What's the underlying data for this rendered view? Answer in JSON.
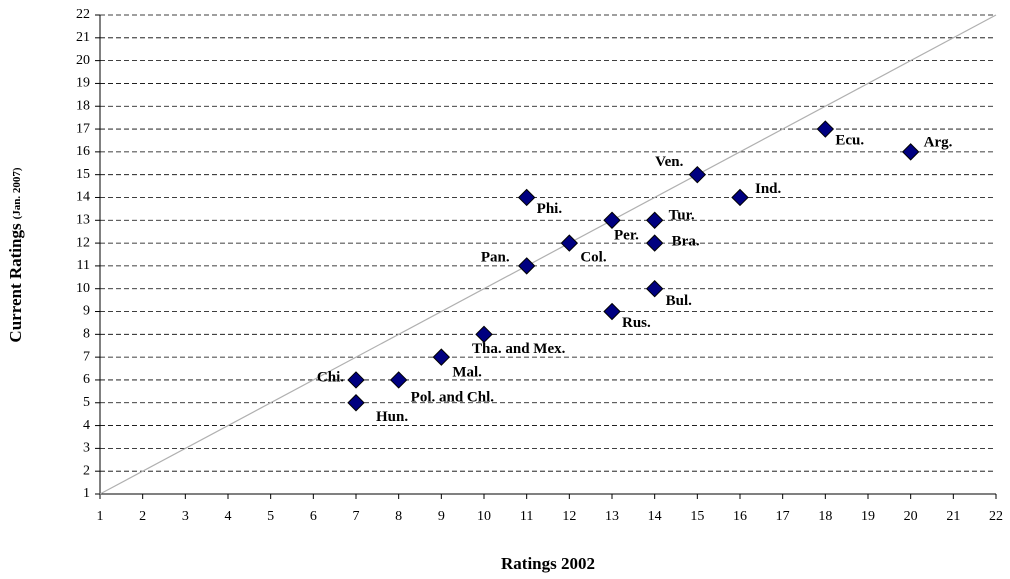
{
  "chart_data": {
    "type": "scatter",
    "x_label": "Ratings 2002",
    "y_label": "Current Ratings",
    "y_label_sub": "(Jan. 2007)",
    "labels": [
      "Chi.",
      "Hun.",
      "Pol. and Chl.",
      "Mal.",
      "Tha. and Mex.",
      "Pan.",
      "Phi.",
      "Col.",
      "Per.",
      "Rus.",
      "Tur.",
      "Bra.",
      "Bul.",
      "Ven.",
      "Ind.",
      "Ecu.",
      "Arg."
    ],
    "x": [
      7,
      7,
      8,
      9,
      10,
      11,
      11,
      12,
      13,
      13,
      14,
      14,
      14,
      15,
      16,
      18,
      20
    ],
    "values": [
      6,
      5,
      6,
      7,
      8,
      11,
      14,
      12,
      13,
      9,
      13,
      12,
      10,
      15,
      14,
      17,
      16
    ],
    "color": "#000080",
    "xlim": [
      1,
      22
    ],
    "ylim": [
      1,
      22
    ],
    "xticks": [
      1,
      2,
      3,
      4,
      5,
      6,
      7,
      8,
      9,
      10,
      11,
      12,
      13,
      14,
      15,
      16,
      17,
      18,
      19,
      20,
      21,
      22
    ],
    "yticks": [
      1,
      2,
      3,
      4,
      5,
      6,
      7,
      8,
      9,
      10,
      11,
      12,
      13,
      14,
      15,
      16,
      17,
      18,
      19,
      20,
      21,
      22
    ],
    "grid": true
  }
}
